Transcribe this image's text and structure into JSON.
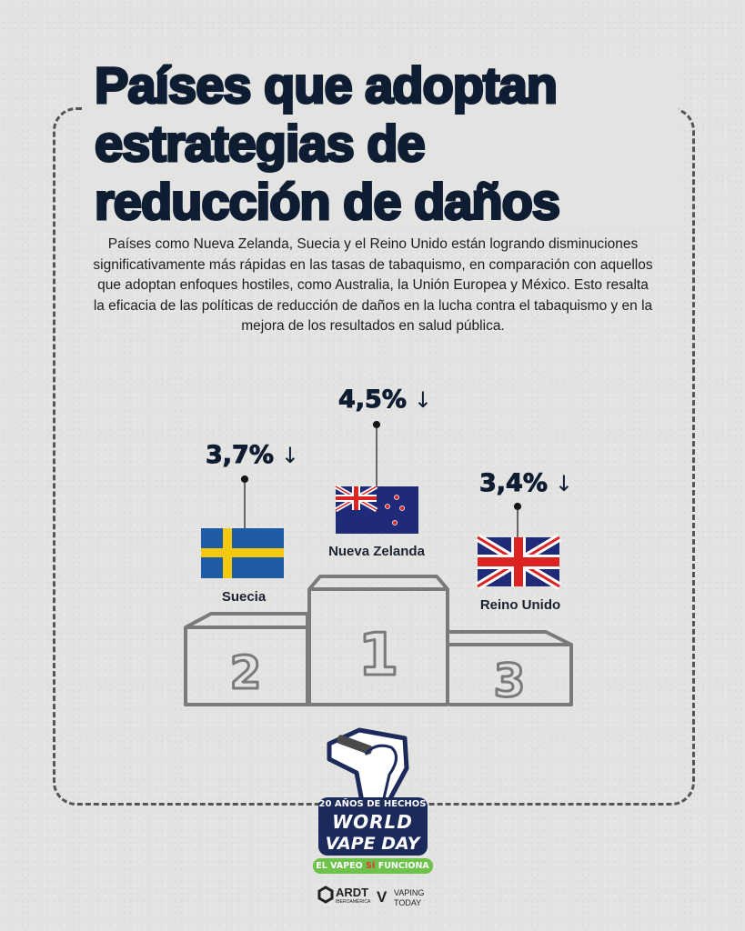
{
  "title": {
    "lines": [
      "Países que adoptan",
      "estrategias de",
      "reducción de daños"
    ]
  },
  "description": "Países como Nueva Zelanda, Suecia y el Reino Unido están logrando disminuciones significativamente más rápidas en las tasas de tabaquismo, en comparación con aquellos que adoptan enfoques hostiles, como Australia, la Unión Europea y México. Esto resalta la eficacia de las políticas de reducción de daños en la lucha contra el tabaquismo y en la mejora de los resultados en salud pública.",
  "podium": [
    {
      "place": "1",
      "country": "Nueva Zelanda",
      "value": "4,5%",
      "trend_icon": "arrow-down"
    },
    {
      "place": "2",
      "country": "Suecia",
      "value": "3,7%",
      "trend_icon": "arrow-down"
    },
    {
      "place": "3",
      "country": "Reino Unido",
      "value": "3,4%",
      "trend_icon": "arrow-down"
    }
  ],
  "arrow_glyph": "↓",
  "logo": {
    "tagline_top": "20 AÑOS DE HECHOS",
    "name_line1": "WORLD",
    "name_line2": "VAPE DAY",
    "slogan_pre": "EL VAPEO",
    "slogan_mid": "SÍ",
    "slogan_post": "FUNCIONA"
  },
  "sponsors": [
    {
      "name": "ARDT",
      "sub": "IBEROAMÉRICA"
    },
    {
      "name": "VAPING",
      "sub": "TODAY"
    }
  ],
  "colors": {
    "navy": "#0f1d32",
    "green": "#6cc24a",
    "red": "#e53935",
    "podium": "#777777"
  }
}
